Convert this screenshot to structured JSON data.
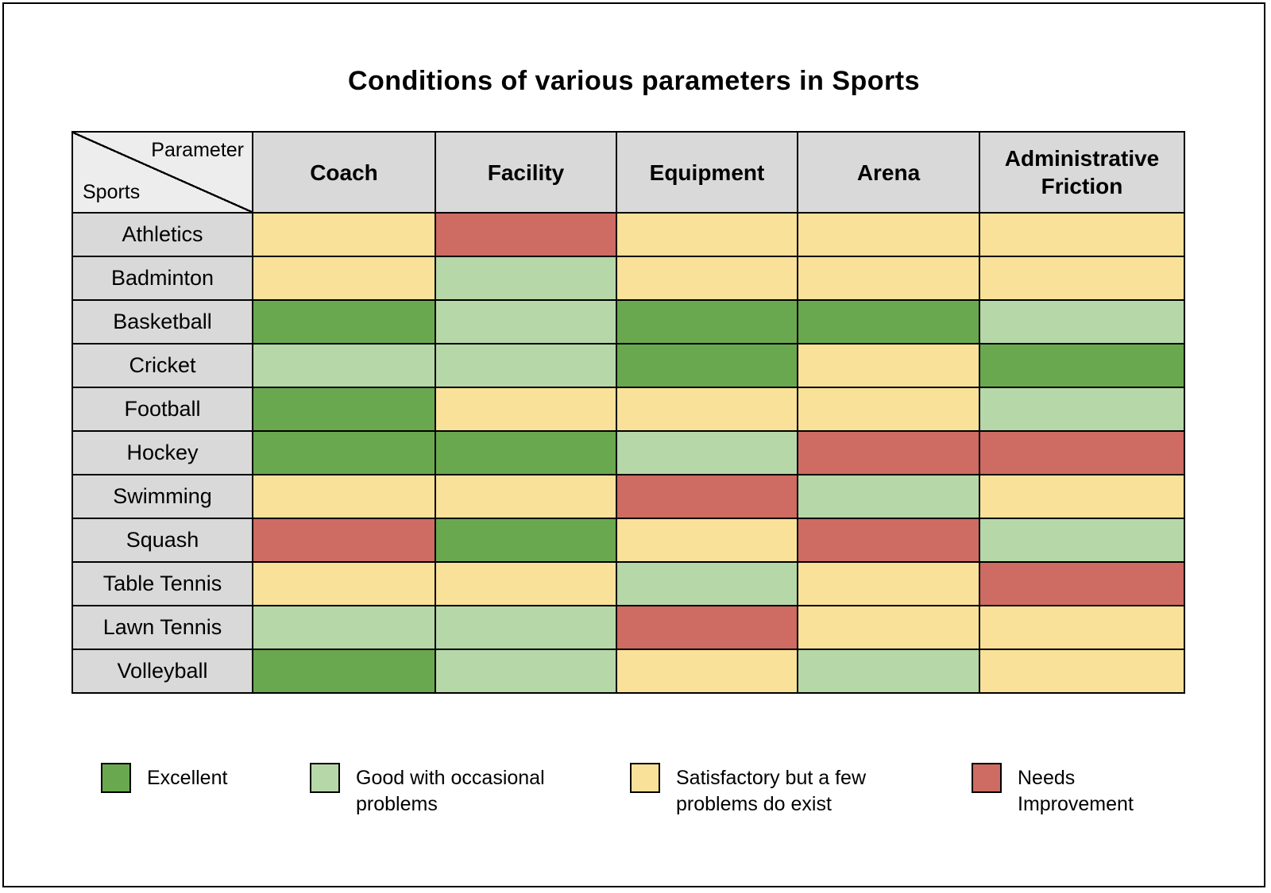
{
  "page": {
    "title": "Conditions of various parameters in Sports"
  },
  "chart_data": {
    "type": "heatmap",
    "title": "Conditions of various parameters in Sports",
    "corner": {
      "top": "Parameter",
      "bottom": "Sports"
    },
    "columns": [
      "Coach",
      "Facility",
      "Equipment",
      "Arena",
      "Administrative Friction"
    ],
    "rows": [
      {
        "sport": "Athletics",
        "values": [
          "satisfactory",
          "needs_improvement",
          "satisfactory",
          "satisfactory",
          "satisfactory"
        ]
      },
      {
        "sport": "Badminton",
        "values": [
          "satisfactory",
          "good",
          "satisfactory",
          "satisfactory",
          "satisfactory"
        ]
      },
      {
        "sport": "Basketball",
        "values": [
          "excellent",
          "good",
          "excellent",
          "excellent",
          "good"
        ]
      },
      {
        "sport": "Cricket",
        "values": [
          "good",
          "good",
          "excellent",
          "satisfactory",
          "excellent"
        ]
      },
      {
        "sport": "Football",
        "values": [
          "excellent",
          "satisfactory",
          "satisfactory",
          "satisfactory",
          "good"
        ]
      },
      {
        "sport": "Hockey",
        "values": [
          "excellent",
          "excellent",
          "good",
          "needs_improvement",
          "needs_improvement"
        ]
      },
      {
        "sport": "Swimming",
        "values": [
          "satisfactory",
          "satisfactory",
          "needs_improvement",
          "good",
          "satisfactory"
        ]
      },
      {
        "sport": "Squash",
        "values": [
          "needs_improvement",
          "excellent",
          "satisfactory",
          "needs_improvement",
          "good"
        ]
      },
      {
        "sport": "Table Tennis",
        "values": [
          "satisfactory",
          "satisfactory",
          "good",
          "satisfactory",
          "needs_improvement"
        ]
      },
      {
        "sport": "Lawn Tennis",
        "values": [
          "good",
          "good",
          "needs_improvement",
          "satisfactory",
          "satisfactory"
        ]
      },
      {
        "sport": "Volleyball",
        "values": [
          "excellent",
          "good",
          "satisfactory",
          "good",
          "satisfactory"
        ]
      }
    ],
    "legend": [
      {
        "key": "excellent",
        "label": "Excellent",
        "color": "#6aa84f"
      },
      {
        "key": "good",
        "label": "Good with occasional problems",
        "color": "#b6d7a8"
      },
      {
        "key": "satisfactory",
        "label": "Satisfactory but a few problems do exist",
        "color": "#f9e19a"
      },
      {
        "key": "needs_improvement",
        "label": "Needs Improvement",
        "color": "#ce6b62"
      }
    ]
  }
}
